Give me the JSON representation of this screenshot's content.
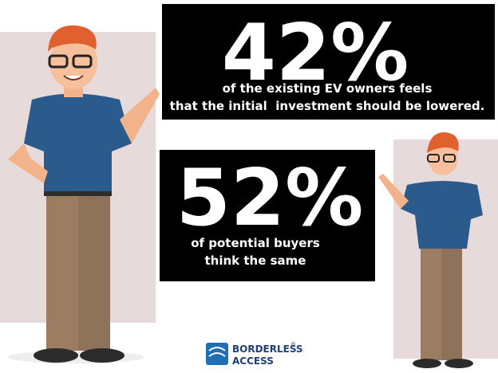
{
  "stats": [
    {
      "value": "42%",
      "lines": [
        "of the existing EV owners feels",
        "that the initial  investment should be lowered."
      ]
    },
    {
      "value": "52%",
      "lines": [
        "of potential buyers",
        "think the same"
      ]
    }
  ],
  "logo": {
    "line1": "BORDERLESS",
    "line2": "ACCESS",
    "mark": "®"
  }
}
